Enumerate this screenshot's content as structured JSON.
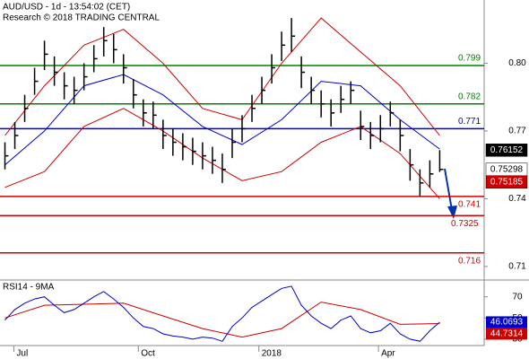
{
  "chart_data": [
    {
      "type": "ohlc",
      "title": "AUD/USD - 1d - 13:54:02 (CET)",
      "subtitle": "Research © 2018 TRADING CENTRAL",
      "x": [
        0,
        1,
        2,
        3,
        4,
        5,
        6,
        7,
        8,
        9,
        10,
        11,
        12,
        13,
        14,
        15,
        16,
        17,
        18,
        19,
        20,
        21,
        22,
        23,
        24,
        25,
        26,
        27,
        28,
        29,
        30,
        31,
        32,
        33,
        34,
        35,
        36,
        37,
        38,
        39,
        40,
        41,
        42,
        43,
        44
      ],
      "high": [
        0.765,
        0.774,
        0.786,
        0.798,
        0.81,
        0.803,
        0.796,
        0.794,
        0.8,
        0.808,
        0.816,
        0.813,
        0.804,
        0.793,
        0.784,
        0.783,
        0.775,
        0.771,
        0.769,
        0.767,
        0.765,
        0.763,
        0.76,
        0.771,
        0.777,
        0.786,
        0.794,
        0.804,
        0.814,
        0.82,
        0.803,
        0.794,
        0.788,
        0.784,
        0.79,
        0.792,
        0.779,
        0.774,
        0.777,
        0.783,
        0.775,
        0.762,
        0.753,
        0.757,
        0.76152
      ],
      "low": [
        0.753,
        0.762,
        0.774,
        0.786,
        0.797,
        0.79,
        0.784,
        0.782,
        0.788,
        0.796,
        0.803,
        0.8,
        0.791,
        0.78,
        0.772,
        0.771,
        0.762,
        0.759,
        0.757,
        0.755,
        0.753,
        0.751,
        0.747,
        0.758,
        0.765,
        0.774,
        0.782,
        0.791,
        0.801,
        0.805,
        0.789,
        0.782,
        0.776,
        0.772,
        0.778,
        0.782,
        0.766,
        0.762,
        0.765,
        0.772,
        0.761,
        0.748,
        0.741,
        0.745,
        0.75185
      ],
      "close": [
        0.759,
        0.768,
        0.78,
        0.792,
        0.804,
        0.796,
        0.79,
        0.788,
        0.794,
        0.802,
        0.81,
        0.806,
        0.798,
        0.786,
        0.778,
        0.777,
        0.768,
        0.765,
        0.763,
        0.761,
        0.759,
        0.757,
        0.753,
        0.765,
        0.771,
        0.78,
        0.788,
        0.798,
        0.808,
        0.812,
        0.796,
        0.788,
        0.782,
        0.778,
        0.784,
        0.788,
        0.772,
        0.768,
        0.771,
        0.778,
        0.768,
        0.755,
        0.747,
        0.751,
        0.75298
      ],
      "bar_color": "#000000",
      "bands": {
        "x": [
          0,
          4,
          8,
          12,
          16,
          20,
          24,
          28,
          32,
          36,
          40,
          44
        ],
        "upper": [
          0.768,
          0.79,
          0.808,
          0.815,
          0.8,
          0.78,
          0.775,
          0.8,
          0.82,
          0.805,
          0.79,
          0.768
        ],
        "lower": [
          0.745,
          0.752,
          0.772,
          0.78,
          0.77,
          0.758,
          0.748,
          0.752,
          0.765,
          0.772,
          0.76,
          0.74
        ],
        "color": "#cc0000"
      },
      "ma": {
        "x": [
          0,
          4,
          8,
          12,
          16,
          20,
          24,
          28,
          32,
          36,
          40,
          44
        ],
        "values": [
          0.755,
          0.77,
          0.79,
          0.795,
          0.786,
          0.772,
          0.764,
          0.775,
          0.792,
          0.79,
          0.775,
          0.762
        ],
        "color": "#0000cc"
      },
      "levels": [
        {
          "value": 0.799,
          "color": "#008000"
        },
        {
          "value": 0.782,
          "color": "#008000"
        },
        {
          "value": 0.771,
          "color": "#0000cc"
        },
        {
          "value": 0.741,
          "color": "#cc0000"
        },
        {
          "value": 0.7325,
          "color": "#cc0000"
        },
        {
          "value": 0.716,
          "color": "#cc0000"
        }
      ],
      "price_labels": [
        {
          "value": 0.76152,
          "color": "#000000",
          "text_color": "#ffffff"
        },
        {
          "value": 0.75298,
          "color": "#ffffff",
          "text_color": "#000000"
        },
        {
          "value": 0.75185,
          "color": "#cc0000",
          "text_color": "#ffffff"
        }
      ],
      "xlim": [
        -0.5,
        48.5
      ],
      "ylim": [
        0.704,
        0.828
      ],
      "yticks": [
        {
          "value": 0.8,
          "label": "0.80"
        },
        0.77,
        0.74,
        0.71
      ],
      "xticks": [
        {
          "value": 0.9,
          "label": "Jul"
        },
        {
          "value": 13.5,
          "label": "Oct"
        },
        {
          "value": 25.7,
          "label": "2018"
        },
        {
          "value": 37.8,
          "label": "Apr"
        }
      ]
    },
    {
      "type": "line",
      "title": "RSI14 - 9MA",
      "x": [
        0,
        1,
        2,
        3,
        4,
        5,
        6,
        7,
        8,
        9,
        10,
        11,
        12,
        13,
        14,
        15,
        16,
        17,
        18,
        19,
        20,
        21,
        22,
        23,
        24,
        25,
        26,
        27,
        28,
        29,
        30,
        31,
        32,
        33,
        34,
        35,
        36,
        37,
        38,
        39,
        40,
        41,
        42,
        43,
        44
      ],
      "values": [
        48,
        58,
        64,
        68,
        70,
        62,
        55,
        58,
        64,
        70,
        75,
        68,
        60,
        50,
        42,
        40,
        35,
        33,
        32,
        30,
        32,
        31,
        28,
        42,
        50,
        60,
        66,
        72,
        78,
        80,
        62,
        52,
        45,
        40,
        48,
        52,
        40,
        36,
        38,
        45,
        35,
        30,
        28,
        38,
        46.0693
      ],
      "color": "#0000cc",
      "ma": {
        "x": [
          0,
          4,
          8,
          12,
          16,
          20,
          24,
          28,
          32,
          36,
          40,
          44
        ],
        "values": [
          50,
          62,
          63,
          64,
          52,
          40,
          32,
          40,
          65,
          58,
          44,
          44.7314
        ],
        "color": "#cc0000"
      },
      "last_labels": [
        {
          "value": 46.0693,
          "color": "#0000cc"
        },
        {
          "value": 44.7314,
          "color": "#cc0000"
        }
      ],
      "xlim": [
        -0.5,
        48.5
      ],
      "ylim": [
        24,
        85
      ],
      "yticks": [
        70,
        50,
        30
      ]
    }
  ]
}
